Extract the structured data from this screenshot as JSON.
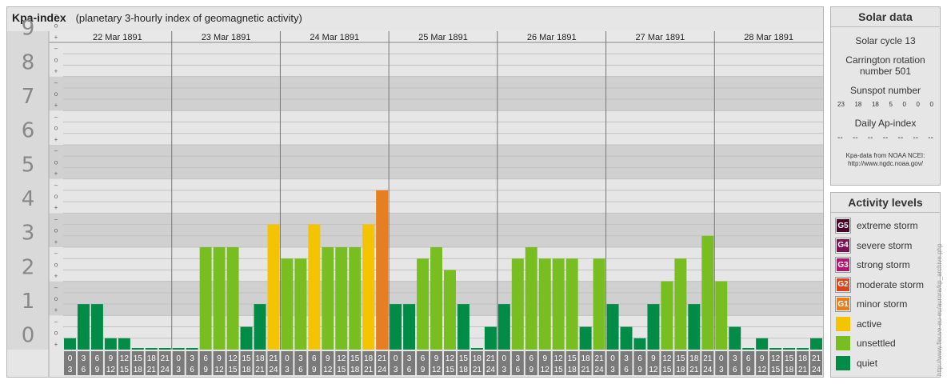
{
  "header": {
    "title": "Kpa-index",
    "subtitle": "(planetary 3-hourly index of geomagnetic activity)"
  },
  "chart_data": {
    "type": "bar",
    "title": "Kpa-index",
    "subtitle": "(planetary 3-hourly index of geomagnetic activity)",
    "ylim": [
      0,
      9
    ],
    "y_ticks": [
      "0",
      "1",
      "2",
      "3",
      "4",
      "5",
      "6",
      "7",
      "8",
      "9"
    ],
    "sub_ticks": [
      "+",
      "o",
      "–"
    ],
    "grid": true,
    "days": [
      "22 Mar 1891",
      "23 Mar 1891",
      "24 Mar 1891",
      "25 Mar 1891",
      "26 Mar 1891",
      "27 Mar 1891",
      "28 Mar 1891"
    ],
    "interval_labels": [
      [
        "0",
        "3"
      ],
      [
        "3",
        "6"
      ],
      [
        "6",
        "9"
      ],
      [
        "9",
        "12"
      ],
      [
        "12",
        "15"
      ],
      [
        "15",
        "18"
      ],
      [
        "18",
        "21"
      ],
      [
        "21",
        "24"
      ]
    ],
    "series": [
      {
        "values": [
          0.333,
          1.333,
          1.333,
          0.333,
          0.333,
          0,
          0,
          0,
          0,
          0,
          3,
          3,
          3,
          0.667,
          1.333,
          3.667,
          2.667,
          2.667,
          3.667,
          3,
          3,
          3,
          3.667,
          4.667,
          1.333,
          1.333,
          2.667,
          3,
          2.333,
          1.333,
          0,
          0.667,
          1.333,
          2.667,
          3,
          2.667,
          2.667,
          2.667,
          0.667,
          2.667,
          1.333,
          0.667,
          0.333,
          1.333,
          2,
          2.667,
          1.333,
          3.333,
          2,
          0.667,
          0,
          0.333,
          0,
          0,
          0,
          0.333
        ]
      }
    ]
  },
  "colors": {
    "quiet": "#008b46",
    "unsettled": "#78be21",
    "active": "#f5c400",
    "minor": "#e67e22",
    "moderate": "#d9431e",
    "strong": "#b5166d",
    "severe": "#7d1152",
    "extreme": "#4a0429"
  },
  "solar": {
    "title": "Solar data",
    "cycle": "Solar cycle 13",
    "carrington": "Carrington rotation number 501",
    "sunspot_label": "Sunspot number",
    "sunspot_values": [
      "23",
      "18",
      "18",
      "5",
      "0",
      "0",
      "0"
    ],
    "ap_label": "Daily Ap-index",
    "ap_values": [
      "--",
      "--",
      "--",
      "--",
      "--",
      "--",
      "--"
    ],
    "source_line1": "Kpa-data from NOAA NCEI:",
    "source_line2": "http://www.ngdc.noaa.gov/"
  },
  "levels": {
    "title": "Activity levels",
    "items": [
      {
        "code": "G5",
        "label": "extreme storm",
        "color": "#4a0429"
      },
      {
        "code": "G4",
        "label": "severe storm",
        "color": "#7d1152"
      },
      {
        "code": "G3",
        "label": "strong storm",
        "color": "#b5166d"
      },
      {
        "code": "G2",
        "label": "moderate storm",
        "color": "#d9431e"
      },
      {
        "code": "G1",
        "label": "minor storm",
        "color": "#e67e22"
      },
      {
        "code": "",
        "label": "active",
        "color": "#f5c400"
      },
      {
        "code": "",
        "label": "unsettled",
        "color": "#78be21"
      },
      {
        "code": "",
        "label": "quiet",
        "color": "#008b46"
      }
    ]
  },
  "credit": "http://www.fleuve-eu-eu/aurora/kp_archive.php"
}
